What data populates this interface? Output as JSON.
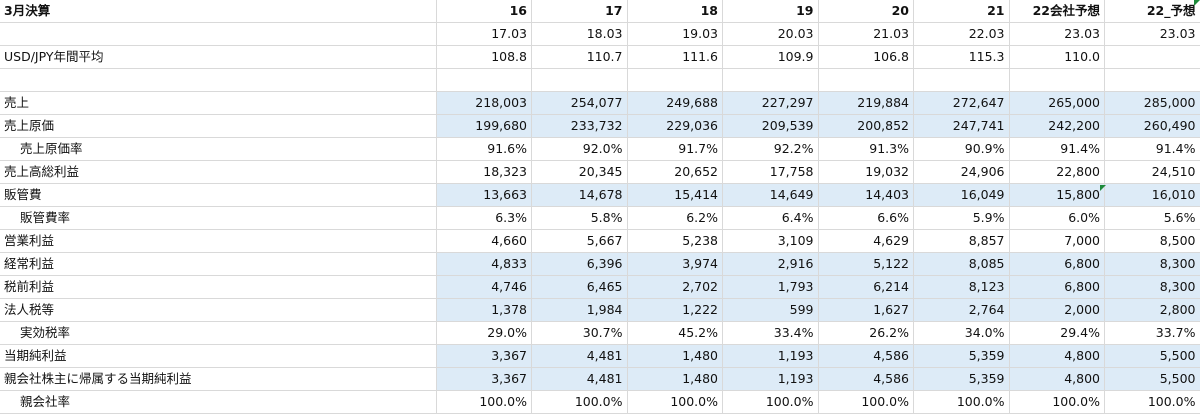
{
  "sheet": {
    "rows": [
      {
        "label": "3月決算",
        "cells": [
          "16",
          "17",
          "18",
          "19",
          "20",
          "21",
          "22会社予想",
          "22_予想"
        ],
        "bold": true,
        "hl": false,
        "indent": false
      },
      {
        "label": "",
        "cells": [
          "17.03",
          "18.03",
          "19.03",
          "20.03",
          "21.03",
          "22.03",
          "23.03",
          "23.03"
        ],
        "bold": false,
        "hl": false,
        "indent": false
      },
      {
        "label": "USD/JPY年間平均",
        "cells": [
          "108.8",
          "110.7",
          "111.6",
          "109.9",
          "106.8",
          "115.3",
          "110.0",
          ""
        ],
        "bold": false,
        "hl": false,
        "indent": false
      },
      {
        "label": "",
        "cells": [
          "",
          "",
          "",
          "",
          "",
          "",
          "",
          ""
        ],
        "bold": false,
        "hl": false,
        "indent": false
      },
      {
        "label": "売上",
        "cells": [
          "218,003",
          "254,077",
          "249,688",
          "227,297",
          "219,884",
          "272,647",
          "265,000",
          "285,000"
        ],
        "bold": false,
        "hl": true,
        "indent": false
      },
      {
        "label": "売上原価",
        "cells": [
          "199,680",
          "233,732",
          "229,036",
          "209,539",
          "200,852",
          "247,741",
          "242,200",
          "260,490"
        ],
        "bold": false,
        "hl": true,
        "indent": false
      },
      {
        "label": "売上原価率",
        "cells": [
          "91.6%",
          "92.0%",
          "91.7%",
          "92.2%",
          "91.3%",
          "90.9%",
          "91.4%",
          "91.4%"
        ],
        "bold": false,
        "hl": false,
        "indent": true
      },
      {
        "label": "売上高総利益",
        "cells": [
          "18,323",
          "20,345",
          "20,652",
          "17,758",
          "19,032",
          "24,906",
          "22,800",
          "24,510"
        ],
        "bold": false,
        "hl": false,
        "indent": false
      },
      {
        "label": "販管費",
        "cells": [
          "13,663",
          "14,678",
          "15,414",
          "14,649",
          "14,403",
          "16,049",
          "15,800",
          "16,010"
        ],
        "bold": false,
        "hl": true,
        "indent": false
      },
      {
        "label": "販管費率",
        "cells": [
          "6.3%",
          "5.8%",
          "6.2%",
          "6.4%",
          "6.6%",
          "5.9%",
          "6.0%",
          "5.6%"
        ],
        "bold": false,
        "hl": false,
        "indent": true
      },
      {
        "label": "営業利益",
        "cells": [
          "4,660",
          "5,667",
          "5,238",
          "3,109",
          "4,629",
          "8,857",
          "7,000",
          "8,500"
        ],
        "bold": false,
        "hl": false,
        "indent": false
      },
      {
        "label": "経常利益",
        "cells": [
          "4,833",
          "6,396",
          "3,974",
          "2,916",
          "5,122",
          "8,085",
          "6,800",
          "8,300"
        ],
        "bold": false,
        "hl": true,
        "indent": false
      },
      {
        "label": "税前利益",
        "cells": [
          "4,746",
          "6,465",
          "2,702",
          "1,793",
          "6,214",
          "8,123",
          "6,800",
          "8,300"
        ],
        "bold": false,
        "hl": true,
        "indent": false
      },
      {
        "label": "法人税等",
        "cells": [
          "1,378",
          "1,984",
          "1,222",
          "599",
          "1,627",
          "2,764",
          "2,000",
          "2,800"
        ],
        "bold": false,
        "hl": true,
        "indent": false
      },
      {
        "label": "実効税率",
        "cells": [
          "29.0%",
          "30.7%",
          "45.2%",
          "33.4%",
          "26.2%",
          "34.0%",
          "29.4%",
          "33.7%"
        ],
        "bold": false,
        "hl": false,
        "indent": true
      },
      {
        "label": "当期純利益",
        "cells": [
          "3,367",
          "4,481",
          "1,480",
          "1,193",
          "4,586",
          "5,359",
          "4,800",
          "5,500"
        ],
        "bold": false,
        "hl": true,
        "indent": false
      },
      {
        "label": "親会社株主に帰属する当期純利益",
        "cells": [
          "3,367",
          "4,481",
          "1,480",
          "1,193",
          "4,586",
          "5,359",
          "4,800",
          "5,500"
        ],
        "bold": false,
        "hl": true,
        "indent": false
      },
      {
        "label": "親会社率",
        "cells": [
          "100.0%",
          "100.0%",
          "100.0%",
          "100.0%",
          "100.0%",
          "100.0%",
          "100.0%",
          "100.0%"
        ],
        "bold": false,
        "hl": false,
        "indent": true
      }
    ]
  },
  "colors": {
    "highlight": "#ddebf7",
    "gridline": "#d9d9d9",
    "note_marker": "#1e8a3a"
  }
}
